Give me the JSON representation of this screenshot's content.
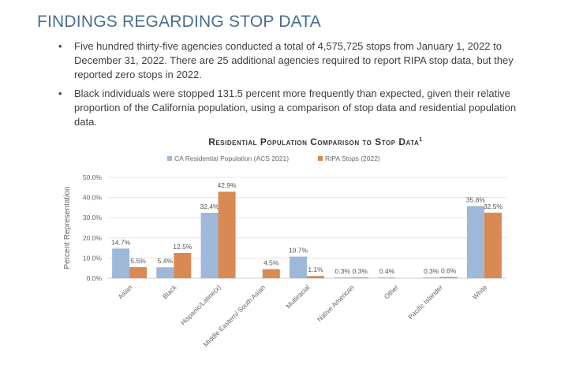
{
  "heading": "FINDINGS REGARDING STOP DATA",
  "bullets": [
    "Five hundred thirty-five agencies conducted a total of 4,575,725 stops from January 1, 2022 to December 31, 2022. There are 25 additional agencies required to report RIPA stop data, but they reported zero stops in 2022.",
    "Black individuals were stopped 131.5 percent more frequently than expected, given their relative proportion of the California population, using a comparison of stop data and residential population data."
  ],
  "bullet_glyph": "•",
  "chart_data": {
    "type": "bar",
    "title": "Residential Population Comparison to Stop Data",
    "title_footnote": "1",
    "ylabel": "Percent Representation",
    "xlabel": "",
    "ylim": [
      0,
      50
    ],
    "yticks": [
      "0.0%",
      "10.0%",
      "20.0%",
      "30.0%",
      "40.0%",
      "50.0%"
    ],
    "grid": true,
    "legend_position": "top",
    "categories": [
      "Asian",
      "Black",
      "Hispanic/Latine(x)",
      "Middle Eastern/ South Asian",
      "Multiracial",
      "Native American",
      "Other",
      "Pacific Islander",
      "White"
    ],
    "series": [
      {
        "name": "CA Residential Population (ACS 2021)",
        "color": "#9db8d8",
        "values": [
          14.7,
          5.4,
          32.4,
          null,
          10.7,
          0.3,
          0.4,
          0.3,
          35.8
        ]
      },
      {
        "name": "RIPA Stops (2022)",
        "color": "#d98a52",
        "values": [
          5.5,
          12.5,
          42.9,
          4.5,
          1.1,
          0.3,
          null,
          0.6,
          32.5
        ]
      }
    ]
  }
}
